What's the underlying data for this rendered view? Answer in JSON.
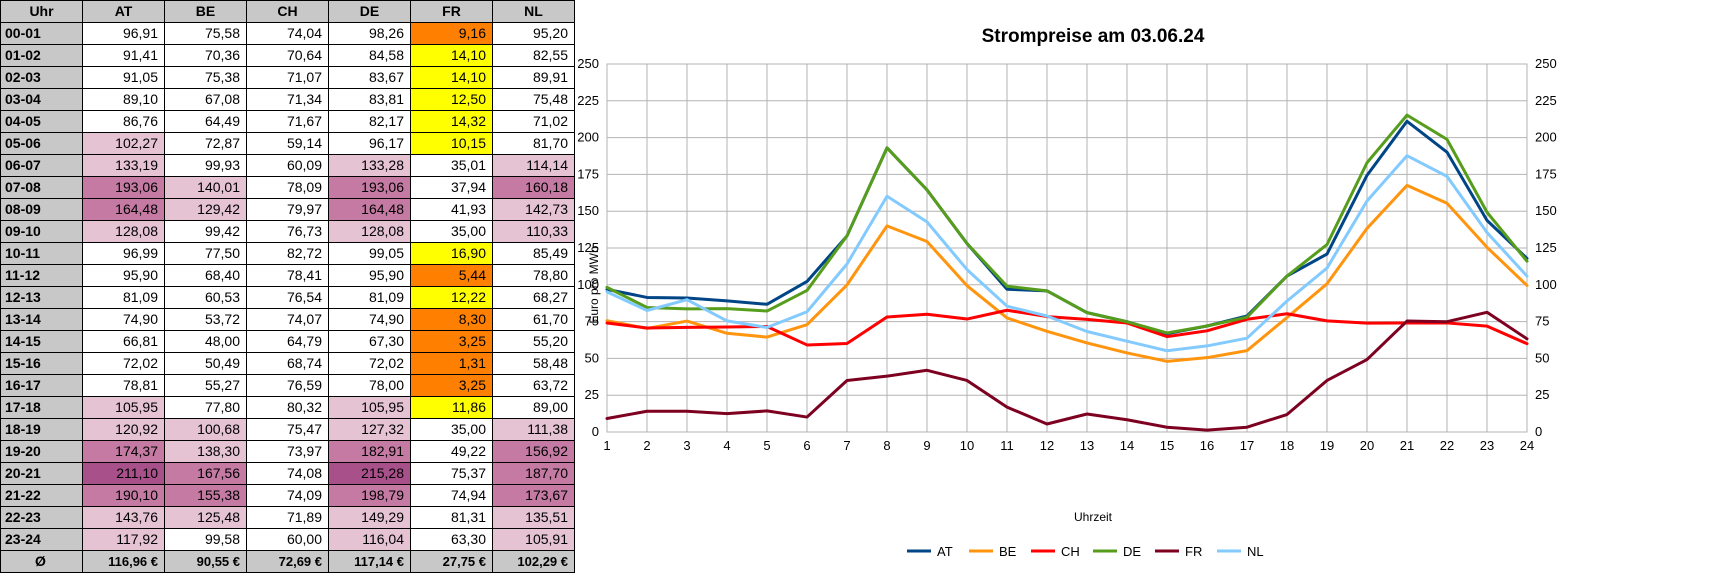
{
  "table": {
    "hour_header": "Uhr",
    "countries": [
      "AT",
      "BE",
      "CH",
      "DE",
      "FR",
      "NL"
    ],
    "rows": [
      {
        "hour": "00-01",
        "values": [
          "96,91",
          "75,58",
          "74,04",
          "98,26",
          "9,16",
          "95,20"
        ]
      },
      {
        "hour": "01-02",
        "values": [
          "91,41",
          "70,36",
          "70,64",
          "84,58",
          "14,10",
          "82,55"
        ]
      },
      {
        "hour": "02-03",
        "values": [
          "91,05",
          "75,38",
          "71,07",
          "83,67",
          "14,10",
          "89,91"
        ]
      },
      {
        "hour": "03-04",
        "values": [
          "89,10",
          "67,08",
          "71,34",
          "83,81",
          "12,50",
          "75,48"
        ]
      },
      {
        "hour": "04-05",
        "values": [
          "86,76",
          "64,49",
          "71,67",
          "82,17",
          "14,32",
          "71,02"
        ]
      },
      {
        "hour": "05-06",
        "values": [
          "102,27",
          "72,87",
          "59,14",
          "96,17",
          "10,15",
          "81,70"
        ]
      },
      {
        "hour": "06-07",
        "values": [
          "133,19",
          "99,93",
          "60,09",
          "133,28",
          "35,01",
          "114,14"
        ]
      },
      {
        "hour": "07-08",
        "values": [
          "193,06",
          "140,01",
          "78,09",
          "193,06",
          "37,94",
          "160,18"
        ]
      },
      {
        "hour": "08-09",
        "values": [
          "164,48",
          "129,42",
          "79,97",
          "164,48",
          "41,93",
          "142,73"
        ]
      },
      {
        "hour": "09-10",
        "values": [
          "128,08",
          "99,42",
          "76,73",
          "128,08",
          "35,00",
          "110,33"
        ]
      },
      {
        "hour": "10-11",
        "values": [
          "96,99",
          "77,50",
          "82,72",
          "99,05",
          "16,90",
          "85,49"
        ]
      },
      {
        "hour": "11-12",
        "values": [
          "95,90",
          "68,40",
          "78,41",
          "95,90",
          "5,44",
          "78,80"
        ]
      },
      {
        "hour": "12-13",
        "values": [
          "81,09",
          "60,53",
          "76,54",
          "81,09",
          "12,22",
          "68,27"
        ]
      },
      {
        "hour": "13-14",
        "values": [
          "74,90",
          "53,72",
          "74,07",
          "74,90",
          "8,30",
          "61,70"
        ]
      },
      {
        "hour": "14-15",
        "values": [
          "66,81",
          "48,00",
          "64,79",
          "67,30",
          "3,25",
          "55,20"
        ]
      },
      {
        "hour": "15-16",
        "values": [
          "72,02",
          "50,49",
          "68,74",
          "72,02",
          "1,31",
          "58,48"
        ]
      },
      {
        "hour": "16-17",
        "values": [
          "78,81",
          "55,27",
          "76,59",
          "78,00",
          "3,25",
          "63,72"
        ]
      },
      {
        "hour": "17-18",
        "values": [
          "105,95",
          "77,80",
          "80,32",
          "105,95",
          "11,86",
          "89,00"
        ]
      },
      {
        "hour": "18-19",
        "values": [
          "120,92",
          "100,68",
          "75,47",
          "127,32",
          "35,00",
          "111,38"
        ]
      },
      {
        "hour": "19-20",
        "values": [
          "174,37",
          "138,30",
          "73,97",
          "182,91",
          "49,22",
          "156,92"
        ]
      },
      {
        "hour": "20-21",
        "values": [
          "211,10",
          "167,56",
          "74,08",
          "215,28",
          "75,37",
          "187,70"
        ]
      },
      {
        "hour": "21-22",
        "values": [
          "190,10",
          "155,38",
          "74,09",
          "198,79",
          "74,94",
          "173,67"
        ]
      },
      {
        "hour": "22-23",
        "values": [
          "143,76",
          "125,48",
          "71,89",
          "149,29",
          "81,31",
          "135,51"
        ]
      },
      {
        "hour": "23-24",
        "values": [
          "117,92",
          "99,58",
          "60,00",
          "116,04",
          "63,30",
          "105,91"
        ]
      }
    ],
    "average_label": "Ø",
    "averages": [
      "116,96 €",
      "90,55 €",
      "72,69 €",
      "117,14 €",
      "27,75 €",
      "102,29 €"
    ],
    "cell_colors": {
      "high_1": "#e6c3d3",
      "high_2": "#c47aa3",
      "high_3": "#a8508a",
      "low_yellow": "#ffff00",
      "low_orange": "#ff8000",
      "header_gray": "#c8c8c8"
    }
  },
  "chart_data": {
    "type": "line",
    "title": "Strompreise am 03.06.24",
    "xlabel": "Uhrzeit",
    "ylabel": "Euro pro MWh",
    "x": [
      1,
      2,
      3,
      4,
      5,
      6,
      7,
      8,
      9,
      10,
      11,
      12,
      13,
      14,
      15,
      16,
      17,
      18,
      19,
      20,
      21,
      22,
      23,
      24
    ],
    "ylim": [
      0,
      250
    ],
    "yticks": [
      0,
      25,
      50,
      75,
      100,
      125,
      150,
      175,
      200,
      225,
      250
    ],
    "secondary_y_axis": true,
    "grid": true,
    "legend_position": "bottom",
    "series": [
      {
        "name": "AT",
        "color": "#004586",
        "values": [
          96.91,
          91.41,
          91.05,
          89.1,
          86.76,
          102.27,
          133.19,
          193.06,
          164.48,
          128.08,
          96.99,
          95.9,
          81.09,
          74.9,
          66.81,
          72.02,
          78.81,
          105.95,
          120.92,
          174.37,
          211.1,
          190.1,
          143.76,
          117.92
        ]
      },
      {
        "name": "BE",
        "color": "#ff950e",
        "values": [
          75.58,
          70.36,
          75.38,
          67.08,
          64.49,
          72.87,
          99.93,
          140.01,
          129.42,
          99.42,
          77.5,
          68.4,
          60.53,
          53.72,
          48.0,
          50.49,
          55.27,
          77.8,
          100.68,
          138.3,
          167.56,
          155.38,
          125.48,
          99.58
        ]
      },
      {
        "name": "CH",
        "color": "#ff0000",
        "values": [
          74.04,
          70.64,
          71.07,
          71.34,
          71.67,
          59.14,
          60.09,
          78.09,
          79.97,
          76.73,
          82.72,
          78.41,
          76.54,
          74.07,
          64.79,
          68.74,
          76.59,
          80.32,
          75.47,
          73.97,
          74.08,
          74.09,
          71.89,
          60.0
        ]
      },
      {
        "name": "DE",
        "color": "#579d1c",
        "values": [
          98.26,
          84.58,
          83.67,
          83.81,
          82.17,
          96.17,
          133.28,
          193.06,
          164.48,
          128.08,
          99.05,
          95.9,
          81.09,
          74.9,
          67.3,
          72.02,
          78.0,
          105.95,
          127.32,
          182.91,
          215.28,
          198.79,
          149.29,
          116.04
        ]
      },
      {
        "name": "FR",
        "color": "#7e0021",
        "values": [
          9.16,
          14.1,
          14.1,
          12.5,
          14.32,
          10.15,
          35.01,
          37.94,
          41.93,
          35.0,
          16.9,
          5.44,
          12.22,
          8.3,
          3.25,
          1.31,
          3.25,
          11.86,
          35.0,
          49.22,
          75.37,
          74.94,
          81.31,
          63.3
        ]
      },
      {
        "name": "NL",
        "color": "#83caff",
        "values": [
          95.2,
          82.55,
          89.91,
          75.48,
          71.02,
          81.7,
          114.14,
          160.18,
          142.73,
          110.33,
          85.49,
          78.8,
          68.27,
          61.7,
          55.2,
          58.48,
          63.72,
          89.0,
          111.38,
          156.92,
          187.7,
          173.67,
          135.51,
          105.91
        ]
      }
    ]
  }
}
